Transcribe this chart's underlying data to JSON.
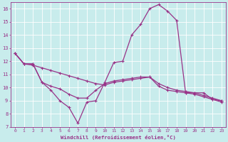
{
  "xlabel": "Windchill (Refroidissement éolien,°C)",
  "background_color": "#c8ecec",
  "line_color": "#993388",
  "xlim": [
    -0.5,
    23.5
  ],
  "ylim": [
    7,
    16.5
  ],
  "yticks": [
    7,
    8,
    9,
    10,
    11,
    12,
    13,
    14,
    15,
    16
  ],
  "xticks": [
    0,
    1,
    2,
    3,
    4,
    5,
    6,
    7,
    8,
    9,
    10,
    11,
    12,
    13,
    14,
    15,
    16,
    17,
    18,
    19,
    20,
    21,
    22,
    23
  ],
  "series1_x": [
    0,
    1,
    2,
    3,
    4,
    5,
    6,
    7,
    8,
    9,
    10,
    11,
    12,
    13,
    14,
    15,
    16,
    17,
    18,
    19,
    20,
    21,
    22,
    23
  ],
  "series1_y": [
    12.6,
    11.8,
    11.8,
    10.4,
    9.8,
    9.0,
    8.5,
    7.3,
    8.9,
    9.0,
    10.4,
    11.9,
    12.0,
    14.0,
    14.8,
    16.0,
    16.3,
    15.8,
    15.1,
    9.6,
    9.6,
    9.6,
    9.1,
    9.0
  ],
  "series2_x": [
    0,
    1,
    2,
    3,
    4,
    5,
    6,
    7,
    8,
    9,
    10,
    11,
    12,
    13,
    14,
    15,
    16,
    17,
    18,
    19,
    20,
    21,
    22,
    23
  ],
  "series2_y": [
    12.6,
    11.8,
    11.8,
    10.4,
    10.1,
    9.9,
    9.5,
    9.2,
    9.2,
    9.8,
    10.3,
    10.5,
    10.6,
    10.7,
    10.8,
    10.8,
    10.3,
    10.0,
    9.8,
    9.7,
    9.6,
    9.4,
    9.2,
    9.0
  ],
  "series3_x": [
    0,
    1,
    2,
    3,
    4,
    5,
    6,
    7,
    8,
    9,
    10,
    11,
    12,
    13,
    14,
    15,
    16,
    17,
    18,
    19,
    20,
    21,
    22,
    23
  ],
  "series3_y": [
    12.6,
    11.8,
    11.7,
    11.5,
    11.3,
    11.1,
    10.9,
    10.7,
    10.5,
    10.3,
    10.2,
    10.4,
    10.5,
    10.6,
    10.7,
    10.8,
    10.1,
    9.8,
    9.7,
    9.6,
    9.5,
    9.3,
    9.1,
    8.9
  ],
  "grid_color": "#ffffff",
  "tick_color": "#993388",
  "label_color": "#993388"
}
